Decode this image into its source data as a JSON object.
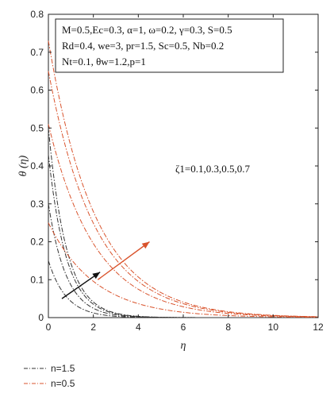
{
  "chart_data": {
    "type": "line",
    "xlabel": "η",
    "ylabel": "θ (η)",
    "xlim": [
      0,
      12
    ],
    "ylim": [
      0,
      0.8
    ],
    "xticks": [
      "0",
      "2",
      "4",
      "6",
      "8",
      "10",
      "12"
    ],
    "yticks": [
      "0",
      "0.1",
      "0.2",
      "0.3",
      "0.4",
      "0.5",
      "0.6",
      "0.7",
      "0.8"
    ],
    "grid": false,
    "params_box": [
      "M=0.5,Ec=0.3, α=1, ω=0.2, γ=0.3, S=0.5",
      "Rd=0.4, we=3, pr=1.5, Sc=0.5, Nb=0.2",
      "Nt=0.1, θw=1.2,p=1"
    ],
    "annotation": "ζ1=0.1,0.3,0.5,0.7",
    "series": [
      {
        "name": "n=1.5",
        "color": "#333333",
        "y0": [
          0.15,
          0.3,
          0.43,
          0.5
        ],
        "decay": 1.25
      },
      {
        "name": "n=0.5",
        "color": "#d9532c",
        "y0": [
          0.25,
          0.51,
          0.65,
          0.73
        ],
        "decay": 0.48
      }
    ],
    "arrows": [
      {
        "color": "#111111",
        "from": [
          0.6,
          0.05
        ],
        "to": [
          2.3,
          0.12
        ]
      },
      {
        "color": "#d9532c",
        "from": [
          2.2,
          0.1
        ],
        "to": [
          4.5,
          0.2
        ]
      }
    ]
  }
}
